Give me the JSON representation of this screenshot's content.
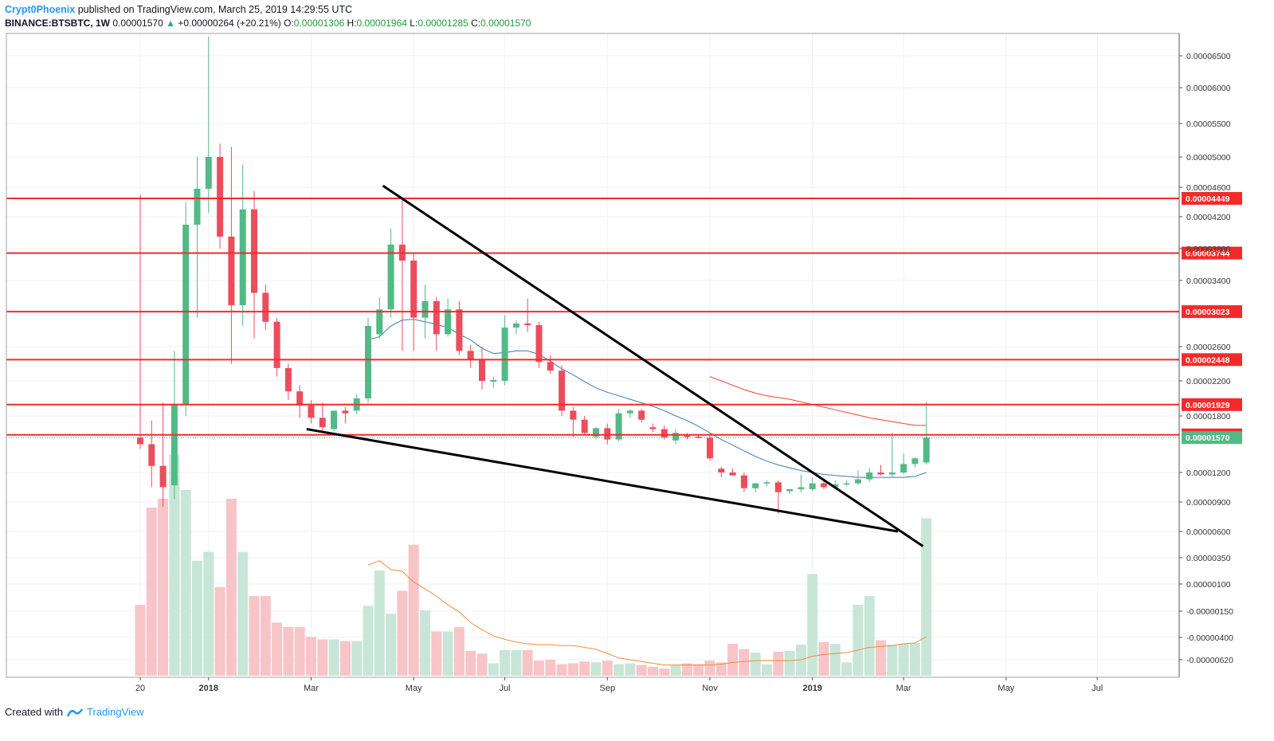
{
  "header": {
    "author": "Crypt0Phoenix",
    "published_text": "published on TradingView.com, March 25, 2019 14:29:55 UTC",
    "symbol": "BINANCE:BTSBTC, 1W",
    "last_price": "0.00001570",
    "change": "+0.00000264 (+20.21%)",
    "open_label": "O:",
    "open_value": "0.00001306",
    "high_label": "H:",
    "high_value": "0.00001964",
    "low_label": "L:",
    "low_value": "0.00001285",
    "close_label": "C:",
    "close_value": "0.00001570"
  },
  "footer": {
    "created_with": "Created with",
    "brand": "TradingView"
  },
  "colors": {
    "up": "#53b987",
    "down": "#eb4d5c",
    "up_volume": "#c8e6d7",
    "down_volume": "#f7c4c8",
    "ma_price": "#3d7ab8",
    "ma_long": "#f44336",
    "ma_volume": "#f28b3a",
    "level_line": "#f42a2a",
    "trend_line": "#000000",
    "grid": "#eef0f3"
  },
  "chart_data": {
    "type": "candlestick",
    "interval": "1W",
    "price_axis_ticks": [
      "0.00006500",
      "0.00006000",
      "0.00005500",
      "0.00005000",
      "0.00004600",
      "0.00004200",
      "0.00003800",
      "0.00003400",
      "0.00002600",
      "0.00002200",
      "0.00001800",
      "0.00001200",
      "0.00000900",
      "0.00000600",
      "0.00000350",
      "0.00000100",
      "-0.00000150",
      "-0.00000400",
      "-0.00000620"
    ],
    "time_axis_labels": [
      "20",
      "2018",
      "Mar",
      "May",
      "Jul",
      "Sep",
      "Nov",
      "2019",
      "Mar",
      "May",
      "Jul"
    ],
    "horizontal_levels": [
      "0.00004449",
      "0.00003744",
      "0.00003023",
      "0.00002448",
      "0.00001929",
      "0.00001599"
    ],
    "last_price_label": "0.00001570",
    "candles": [
      {
        "o": 1.57,
        "h": 4.5,
        "l": 1.45,
        "c": 1.5
      },
      {
        "o": 1.5,
        "h": 1.75,
        "l": 1.05,
        "c": 1.27
      },
      {
        "o": 1.27,
        "h": 1.95,
        "l": 0.85,
        "c": 1.05
      },
      {
        "o": 1.07,
        "h": 2.55,
        "l": 0.93,
        "c": 1.93
      },
      {
        "o": 1.93,
        "h": 4.4,
        "l": 1.8,
        "c": 4.1
      },
      {
        "o": 4.1,
        "h": 5.0,
        "l": 2.95,
        "c": 4.58
      },
      {
        "o": 4.58,
        "h": 6.8,
        "l": 4.25,
        "c": 5.0
      },
      {
        "o": 5.0,
        "h": 5.2,
        "l": 3.8,
        "c": 3.95
      },
      {
        "o": 3.95,
        "h": 5.15,
        "l": 2.4,
        "c": 3.1
      },
      {
        "o": 3.1,
        "h": 4.9,
        "l": 2.85,
        "c": 4.3
      },
      {
        "o": 4.3,
        "h": 4.55,
        "l": 2.7,
        "c": 3.25
      },
      {
        "o": 3.25,
        "h": 3.35,
        "l": 2.8,
        "c": 2.9
      },
      {
        "o": 2.9,
        "h": 2.95,
        "l": 2.25,
        "c": 2.35
      },
      {
        "o": 2.35,
        "h": 2.4,
        "l": 1.98,
        "c": 2.08
      },
      {
        "o": 2.08,
        "h": 2.15,
        "l": 1.78,
        "c": 1.92
      },
      {
        "o": 1.92,
        "h": 1.98,
        "l": 1.72,
        "c": 1.78
      },
      {
        "o": 1.78,
        "h": 1.95,
        "l": 1.62,
        "c": 1.68
      },
      {
        "o": 1.66,
        "h": 1.85,
        "l": 1.64,
        "c": 1.86
      },
      {
        "o": 1.86,
        "h": 1.9,
        "l": 1.72,
        "c": 1.83
      },
      {
        "o": 1.86,
        "h": 2.05,
        "l": 1.82,
        "c": 2.0
      },
      {
        "o": 2.0,
        "h": 2.95,
        "l": 1.95,
        "c": 2.85
      },
      {
        "o": 2.75,
        "h": 3.2,
        "l": 2.7,
        "c": 3.05
      },
      {
        "o": 3.05,
        "h": 4.05,
        "l": 2.95,
        "c": 3.85
      },
      {
        "o": 3.85,
        "h": 4.45,
        "l": 2.55,
        "c": 3.65
      },
      {
        "o": 3.65,
        "h": 3.75,
        "l": 2.55,
        "c": 2.95
      },
      {
        "o": 2.95,
        "h": 3.35,
        "l": 2.7,
        "c": 3.15
      },
      {
        "o": 3.15,
        "h": 3.2,
        "l": 2.55,
        "c": 2.75
      },
      {
        "o": 2.75,
        "h": 3.18,
        "l": 2.72,
        "c": 3.05
      },
      {
        "o": 3.05,
        "h": 3.15,
        "l": 2.5,
        "c": 2.55
      },
      {
        "o": 2.55,
        "h": 2.62,
        "l": 2.35,
        "c": 2.45
      },
      {
        "o": 2.45,
        "h": 2.6,
        "l": 2.1,
        "c": 2.2
      },
      {
        "o": 2.19,
        "h": 2.25,
        "l": 2.12,
        "c": 2.21
      },
      {
        "o": 2.2,
        "h": 2.98,
        "l": 2.15,
        "c": 2.83
      },
      {
        "o": 2.83,
        "h": 2.92,
        "l": 2.75,
        "c": 2.88
      },
      {
        "o": 2.88,
        "h": 3.18,
        "l": 2.78,
        "c": 2.86
      },
      {
        "o": 2.86,
        "h": 2.9,
        "l": 2.35,
        "c": 2.42
      },
      {
        "o": 2.42,
        "h": 2.5,
        "l": 2.28,
        "c": 2.32
      },
      {
        "o": 2.32,
        "h": 2.38,
        "l": 1.8,
        "c": 1.86
      },
      {
        "o": 1.86,
        "h": 1.9,
        "l": 1.58,
        "c": 1.76
      },
      {
        "o": 1.76,
        "h": 1.8,
        "l": 1.6,
        "c": 1.62
      },
      {
        "o": 1.58,
        "h": 1.68,
        "l": 1.55,
        "c": 1.67
      },
      {
        "o": 1.67,
        "h": 1.72,
        "l": 1.5,
        "c": 1.55
      },
      {
        "o": 1.55,
        "h": 1.88,
        "l": 1.53,
        "c": 1.83
      },
      {
        "o": 1.83,
        "h": 1.88,
        "l": 1.78,
        "c": 1.86
      },
      {
        "o": 1.86,
        "h": 1.88,
        "l": 1.73,
        "c": 1.76
      },
      {
        "o": 1.68,
        "h": 1.72,
        "l": 1.63,
        "c": 1.66
      },
      {
        "o": 1.66,
        "h": 1.7,
        "l": 1.55,
        "c": 1.57
      },
      {
        "o": 1.54,
        "h": 1.66,
        "l": 1.5,
        "c": 1.62
      },
      {
        "o": 1.59,
        "h": 1.62,
        "l": 1.55,
        "c": 1.58
      },
      {
        "o": 1.58,
        "h": 1.6,
        "l": 1.56,
        "c": 1.57
      },
      {
        "o": 1.57,
        "h": 1.62,
        "l": 1.33,
        "c": 1.35
      },
      {
        "o": 1.24,
        "h": 1.26,
        "l": 1.15,
        "c": 1.2
      },
      {
        "o": 1.2,
        "h": 1.24,
        "l": 1.17,
        "c": 1.17
      },
      {
        "o": 1.17,
        "h": 1.2,
        "l": 1.0,
        "c": 1.04
      },
      {
        "o": 1.04,
        "h": 1.09,
        "l": 1.0,
        "c": 1.09
      },
      {
        "o": 1.09,
        "h": 1.12,
        "l": 1.06,
        "c": 1.1
      },
      {
        "o": 1.1,
        "h": 1.12,
        "l": 0.78,
        "c": 1.0
      },
      {
        "o": 1.01,
        "h": 1.03,
        "l": 0.98,
        "c": 1.03
      },
      {
        "o": 1.03,
        "h": 1.18,
        "l": 1.0,
        "c": 1.05
      },
      {
        "o": 1.03,
        "h": 1.15,
        "l": 1.01,
        "c": 1.09
      },
      {
        "o": 1.09,
        "h": 1.12,
        "l": 1.03,
        "c": 1.05
      },
      {
        "o": 1.05,
        "h": 1.12,
        "l": 1.04,
        "c": 1.08
      },
      {
        "o": 1.08,
        "h": 1.12,
        "l": 1.06,
        "c": 1.09
      },
      {
        "o": 1.09,
        "h": 1.22,
        "l": 1.07,
        "c": 1.13
      },
      {
        "o": 1.13,
        "h": 1.25,
        "l": 1.1,
        "c": 1.2
      },
      {
        "o": 1.2,
        "h": 1.28,
        "l": 1.17,
        "c": 1.18
      },
      {
        "o": 1.18,
        "h": 1.62,
        "l": 1.15,
        "c": 1.2
      },
      {
        "o": 1.2,
        "h": 1.4,
        "l": 1.18,
        "c": 1.29
      },
      {
        "o": 1.29,
        "h": 1.36,
        "l": 1.25,
        "c": 1.35
      },
      {
        "o": 1.306,
        "h": 1.964,
        "l": 1.285,
        "c": 1.57
      }
    ],
    "volume": [
      0.8,
      1.9,
      2.0,
      2.5,
      2.1,
      1.3,
      1.4,
      1.0,
      2.0,
      1.4,
      0.9,
      0.9,
      0.6,
      0.55,
      0.55,
      0.44,
      0.41,
      0.41,
      0.39,
      0.39,
      0.79,
      1.19,
      0.7,
      0.96,
      1.48,
      0.74,
      0.5,
      0.5,
      0.55,
      0.28,
      0.25,
      0.14,
      0.29,
      0.29,
      0.29,
      0.17,
      0.18,
      0.13,
      0.14,
      0.16,
      0.15,
      0.17,
      0.13,
      0.14,
      0.12,
      0.1,
      0.08,
      0.12,
      0.14,
      0.13,
      0.17,
      0.15,
      0.36,
      0.3,
      0.26,
      0.13,
      0.27,
      0.28,
      0.35,
      1.15,
      0.38,
      0.36,
      0.15,
      0.8,
      0.9,
      0.4,
      0.35,
      0.36,
      0.37,
      1.78
    ],
    "ma_price": [
      [
        20,
        2.68
      ],
      [
        21,
        2.72
      ],
      [
        22,
        2.85
      ],
      [
        23,
        2.92
      ],
      [
        24,
        2.93
      ],
      [
        25,
        2.9
      ],
      [
        26,
        2.87
      ],
      [
        27,
        2.83
      ],
      [
        28,
        2.75
      ],
      [
        29,
        2.68
      ],
      [
        30,
        2.58
      ],
      [
        31,
        2.52
      ],
      [
        32,
        2.53
      ],
      [
        33,
        2.55
      ],
      [
        34,
        2.55
      ],
      [
        35,
        2.51
      ],
      [
        36,
        2.43
      ],
      [
        37,
        2.34
      ],
      [
        38,
        2.27
      ],
      [
        39,
        2.19
      ],
      [
        40,
        2.12
      ],
      [
        41,
        2.07
      ],
      [
        42,
        2.03
      ],
      [
        43,
        1.99
      ],
      [
        44,
        1.95
      ],
      [
        45,
        1.91
      ],
      [
        46,
        1.86
      ],
      [
        47,
        1.8
      ],
      [
        48,
        1.75
      ],
      [
        49,
        1.69
      ],
      [
        50,
        1.62
      ],
      [
        51,
        1.55
      ],
      [
        52,
        1.49
      ],
      [
        53,
        1.43
      ],
      [
        54,
        1.37
      ],
      [
        55,
        1.32
      ],
      [
        56,
        1.28
      ],
      [
        57,
        1.25
      ],
      [
        58,
        1.22
      ],
      [
        59,
        1.2
      ],
      [
        60,
        1.18
      ],
      [
        61,
        1.17
      ],
      [
        62,
        1.16
      ],
      [
        63,
        1.15
      ],
      [
        64,
        1.15
      ],
      [
        65,
        1.15
      ],
      [
        66,
        1.15
      ],
      [
        67,
        1.15
      ],
      [
        68,
        1.16
      ],
      [
        69,
        1.2
      ]
    ],
    "ma_long": [
      [
        50,
        2.25
      ],
      [
        51,
        2.2
      ],
      [
        52,
        2.15
      ],
      [
        53,
        2.1
      ],
      [
        54,
        2.06
      ],
      [
        55,
        2.03
      ],
      [
        56,
        2.01
      ],
      [
        57,
        1.99
      ],
      [
        58,
        1.96
      ],
      [
        59,
        1.93
      ],
      [
        60,
        1.9
      ],
      [
        61,
        1.87
      ],
      [
        62,
        1.84
      ],
      [
        63,
        1.81
      ],
      [
        64,
        1.78
      ],
      [
        65,
        1.76
      ],
      [
        66,
        1.74
      ],
      [
        67,
        1.72
      ],
      [
        68,
        1.7
      ],
      [
        69,
        1.7
      ]
    ],
    "ma_volume": [
      [
        20,
        1.25
      ],
      [
        21,
        1.3
      ],
      [
        22,
        1.2
      ],
      [
        23,
        1.18
      ],
      [
        24,
        1.06
      ],
      [
        25,
        0.98
      ],
      [
        26,
        0.9
      ],
      [
        27,
        0.8
      ],
      [
        28,
        0.72
      ],
      [
        29,
        0.6
      ],
      [
        30,
        0.52
      ],
      [
        31,
        0.45
      ],
      [
        32,
        0.41
      ],
      [
        33,
        0.38
      ],
      [
        34,
        0.36
      ],
      [
        35,
        0.35
      ],
      [
        36,
        0.35
      ],
      [
        37,
        0.34
      ],
      [
        38,
        0.34
      ],
      [
        39,
        0.32
      ],
      [
        40,
        0.3
      ],
      [
        41,
        0.25
      ],
      [
        42,
        0.2
      ],
      [
        43,
        0.18
      ],
      [
        44,
        0.16
      ],
      [
        45,
        0.14
      ],
      [
        46,
        0.12
      ],
      [
        47,
        0.12
      ],
      [
        48,
        0.12
      ],
      [
        49,
        0.12
      ],
      [
        50,
        0.12
      ],
      [
        51,
        0.13
      ],
      [
        52,
        0.15
      ],
      [
        53,
        0.16
      ],
      [
        54,
        0.17
      ],
      [
        55,
        0.17
      ],
      [
        56,
        0.17
      ],
      [
        57,
        0.17
      ],
      [
        58,
        0.18
      ],
      [
        59,
        0.22
      ],
      [
        60,
        0.24
      ],
      [
        61,
        0.25
      ],
      [
        62,
        0.26
      ],
      [
        63,
        0.29
      ],
      [
        64,
        0.32
      ],
      [
        65,
        0.33
      ],
      [
        66,
        0.34
      ],
      [
        67,
        0.36
      ],
      [
        68,
        0.37
      ],
      [
        69,
        0.44
      ]
    ],
    "trend_lines": [
      {
        "from": {
          "week": 21.3,
          "price": 4.62
        },
        "to": {
          "week": 68.7,
          "price": 0.46
        }
      },
      {
        "from": {
          "week": 14.6,
          "price": 1.66
        },
        "to": {
          "week": 66.5,
          "price": 0.6
        }
      }
    ]
  }
}
